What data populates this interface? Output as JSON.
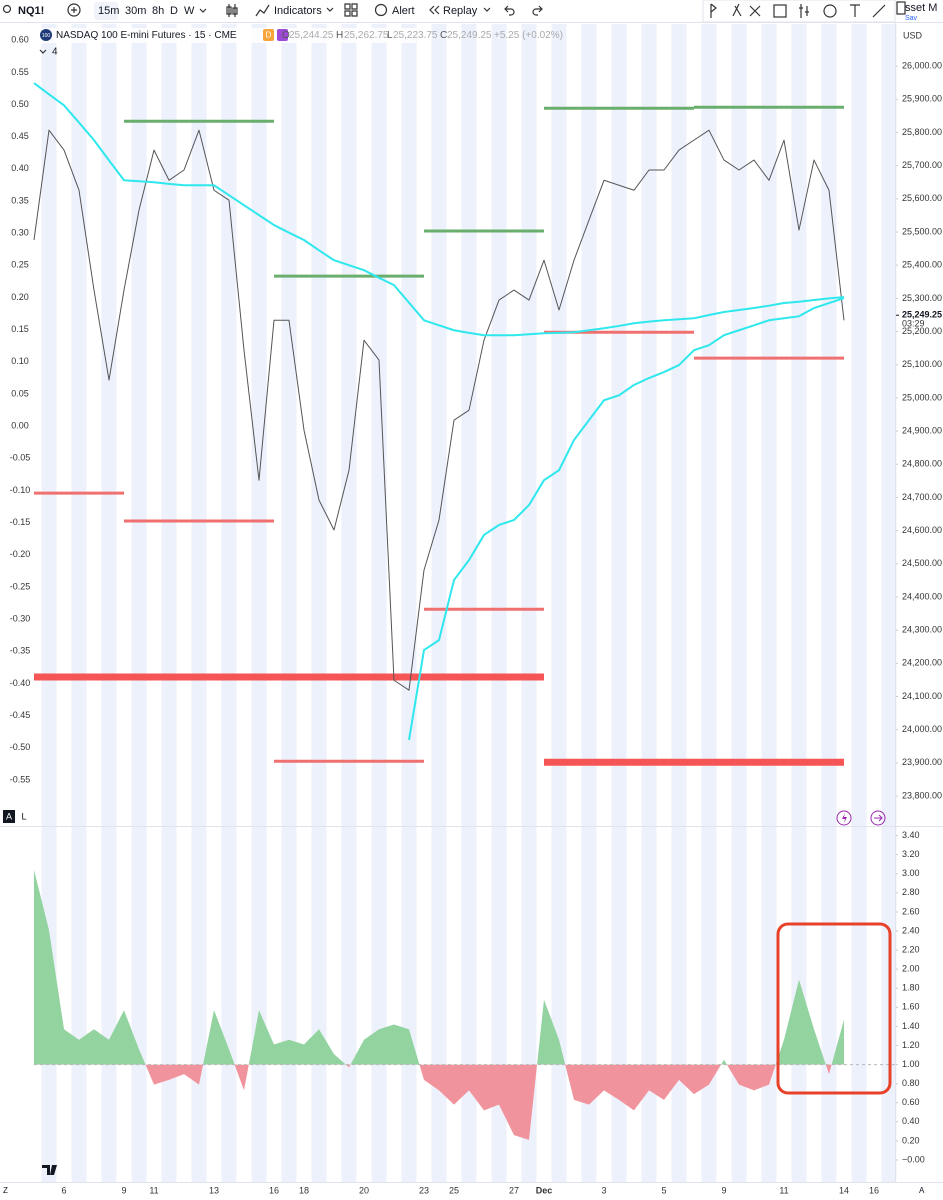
{
  "toolbar": {
    "symbol": "NQ1!",
    "intervals": [
      "15m",
      "30m",
      "8h",
      "D",
      "W"
    ],
    "indicators": "Indicators",
    "alert": "Alert",
    "replay": "Replay",
    "asset": "sset M",
    "save": "Sav"
  },
  "header": {
    "badge": "100",
    "name": "NASDAQ 100 E-mini Futures · 15 · CME",
    "flag": "D",
    "o_label": "O",
    "o": "25,244.25",
    "h_label": "H",
    "h": "25,262.75",
    "l_label": "L",
    "l": "25,223.75",
    "c_label": "C",
    "c": "25,249.25",
    "change": "+5.25 (+0.02%)",
    "indicator_count": "4"
  },
  "scale_buttons": {
    "auto": "A",
    "log": "L"
  },
  "footer": {
    "left": "Z",
    "right": "A"
  },
  "chart_data": [
    {
      "type": "line",
      "currency": "USD",
      "ylim": [
        23773,
        26115
      ],
      "yticks": [
        {
          "value": 23800,
          "label": "23,800.00"
        },
        {
          "value": 23900,
          "label": "23,900.00"
        },
        {
          "value": 24000,
          "label": "24,000.00"
        },
        {
          "value": 24100,
          "label": "24,100.00"
        },
        {
          "value": 24200,
          "label": "24,200.00"
        },
        {
          "value": 24300,
          "label": "24,300.00"
        },
        {
          "value": 24400,
          "label": "24,400.00"
        },
        {
          "value": 24500,
          "label": "24,500.00"
        },
        {
          "value": 24600,
          "label": "24,600.00"
        },
        {
          "value": 24700,
          "label": "24,700.00"
        },
        {
          "value": 24800,
          "label": "24,800.00"
        },
        {
          "value": 24900,
          "label": "24,900.00"
        },
        {
          "value": 25000,
          "label": "25,000.00"
        },
        {
          "value": 25100,
          "label": "25,100.00"
        },
        {
          "value": 25200,
          "label": "25,200.00"
        },
        {
          "value": 25300,
          "label": "25,300.00"
        },
        {
          "value": 25400,
          "label": "25,400.00"
        },
        {
          "value": 25500,
          "label": "25,500.00"
        },
        {
          "value": 25600,
          "label": "25,600.00"
        },
        {
          "value": 25700,
          "label": "25,700.00"
        },
        {
          "value": 25800,
          "label": "25,800.00"
        },
        {
          "value": 25900,
          "label": "25,900.00"
        },
        {
          "value": 26000,
          "label": "26,000.00"
        }
      ],
      "y2lim": [
        -0.589,
        0.619
      ],
      "y2ticks": [
        {
          "value": -0.55,
          "label": "-0.55"
        },
        {
          "value": -0.5,
          "label": "-0.50"
        },
        {
          "value": -0.45,
          "label": "-0.45"
        },
        {
          "value": -0.4,
          "label": "-0.40"
        },
        {
          "value": -0.35,
          "label": "-0.35"
        },
        {
          "value": -0.3,
          "label": "-0.30"
        },
        {
          "value": -0.25,
          "label": "-0.25"
        },
        {
          "value": -0.2,
          "label": "-0.20"
        },
        {
          "value": -0.15,
          "label": "-0.15"
        },
        {
          "value": -0.1,
          "label": "-0.10"
        },
        {
          "value": -0.05,
          "label": "-0.05"
        },
        {
          "value": 0,
          "label": "0.00"
        },
        {
          "value": 0.05,
          "label": "0.05"
        },
        {
          "value": 0.1,
          "label": "0.10"
        },
        {
          "value": 0.15,
          "label": "0.15"
        },
        {
          "value": 0.2,
          "label": "0.20"
        },
        {
          "value": 0.25,
          "label": "0.25"
        },
        {
          "value": 0.3,
          "label": "0.30"
        },
        {
          "value": 0.35,
          "label": "0.35"
        },
        {
          "value": 0.4,
          "label": "0.40"
        },
        {
          "value": 0.45,
          "label": "0.45"
        },
        {
          "value": 0.5,
          "label": "0.50"
        },
        {
          "value": 0.55,
          "label": "0.55"
        },
        {
          "value": 0.6,
          "label": "0.60"
        }
      ],
      "series": [
        {
          "color": "#555555",
          "width": 1,
          "values": [
            25476,
            25807,
            25747,
            25626,
            25325,
            25054,
            25325,
            25566,
            25747,
            25656,
            25687,
            25807,
            25626,
            25596,
            25144,
            24752,
            25234,
            25234,
            24903,
            24692,
            24602,
            24782,
            25174,
            25114,
            24149,
            24119,
            24481,
            24632,
            24933,
            24963,
            25174,
            25295,
            25325,
            25295,
            25415,
            25265,
            25415,
            25536,
            25656,
            25641,
            25626,
            25687,
            25687,
            25747,
            25777,
            25807,
            25717,
            25687,
            25717,
            25656,
            25777,
            25506,
            25717,
            25626,
            25234,
            null,
            null,
            null
          ]
        },
        {
          "color": "#2ee8ee",
          "width": 2,
          "values": [
            25949,
            25915,
            25882,
            25830,
            25777,
            25716,
            25656,
            25653,
            25650,
            25645,
            25641,
            25641,
            25641,
            25611,
            25581,
            25551,
            25521,
            25498,
            25476,
            25445,
            25415,
            25400,
            25385,
            25362,
            25340,
            25287,
            25234,
            25219,
            25204,
            25196,
            25189,
            25189,
            25189,
            25192,
            25195,
            25196,
            25198,
            25204,
            25210,
            25217,
            25225,
            25230,
            25234,
            25237,
            25240,
            25250,
            25259,
            25265,
            25271,
            25278,
            25286,
            25290,
            25295,
            25300,
            25304,
            null,
            null,
            null
          ]
        },
        {
          "color": "#2ee8ee",
          "width": 2,
          "values": [
            null,
            null,
            null,
            null,
            null,
            null,
            null,
            null,
            null,
            null,
            null,
            null,
            null,
            null,
            null,
            null,
            null,
            null,
            null,
            null,
            null,
            null,
            null,
            null,
            null,
            23969,
            24240,
            24270,
            24451,
            24511,
            24587,
            24617,
            24632,
            24677,
            24752,
            24782,
            24873,
            24933,
            24993,
            25008,
            25039,
            25060,
            25078,
            25099,
            25144,
            25159,
            25189,
            25204,
            25219,
            25234,
            25240,
            25246,
            25271,
            25286,
            25301,
            null,
            null,
            null
          ]
        }
      ],
      "levels": [
        {
          "x": [
            6,
            16
          ],
          "value": 25834,
          "color": "#6aae6e",
          "width": 3
        },
        {
          "x": [
            16,
            26
          ],
          "value": 25367,
          "color": "#6aae6e",
          "width": 3
        },
        {
          "x": [
            26,
            34
          ],
          "value": 25503,
          "color": "#6aae6e",
          "width": 3
        },
        {
          "x": [
            34,
            44
          ],
          "value": 25873,
          "color": "#6aae6e",
          "width": 3
        },
        {
          "x": [
            44,
            54
          ],
          "value": 25876,
          "color": "#6aae6e",
          "width": 3
        },
        {
          "x": [
            0,
            6
          ],
          "value": 24713,
          "color": "#f07070",
          "width": 3
        },
        {
          "x": [
            6,
            16
          ],
          "value": 24629,
          "color": "#f07070",
          "width": 3
        },
        {
          "x": [
            26,
            34
          ],
          "value": 24363,
          "color": "#f07070",
          "width": 3
        },
        {
          "x": [
            34,
            44
          ],
          "value": 25198,
          "color": "#f07070",
          "width": 3
        },
        {
          "x": [
            44,
            54
          ],
          "value": 25120,
          "color": "#f07070",
          "width": 3
        },
        {
          "x": [
            16,
            26
          ],
          "value": 23905,
          "color": "#f07070",
          "width": 3
        },
        {
          "x": [
            0,
            34
          ],
          "value": 24159,
          "color": "#f55555",
          "width": 7
        },
        {
          "x": [
            34,
            54
          ],
          "value": 23902,
          "color": "#f55555",
          "width": 7
        }
      ],
      "last_price": {
        "value": 25249.25,
        "label": "25,249.25"
      },
      "countdown": "03:29"
    },
    {
      "type": "area",
      "categories": [
        null,
        null,
        "6",
        null,
        null,
        null,
        "9",
        null,
        "11",
        null,
        null,
        null,
        "13",
        null,
        null,
        null,
        "16",
        null,
        "18",
        null,
        null,
        null,
        "20",
        null,
        null,
        null,
        "23",
        null,
        "25",
        null,
        null,
        null,
        "27",
        null,
        "Dec",
        null,
        null,
        null,
        "3",
        null,
        null,
        null,
        "5",
        null,
        null,
        null,
        "9",
        null,
        null,
        null,
        "11",
        null,
        null,
        null,
        "14",
        null,
        "16",
        null
      ],
      "values": [
        3.04,
        2.41,
        1.37,
        1.26,
        1.37,
        1.26,
        1.57,
        1.16,
        0.79,
        0.84,
        0.9,
        0.79,
        1.57,
        1.16,
        0.73,
        1.57,
        1.21,
        1.26,
        1.21,
        1.37,
        1.11,
        0.97,
        1.26,
        1.37,
        1.42,
        1.37,
        0.84,
        0.73,
        0.58,
        0.73,
        0.52,
        0.58,
        0.26,
        0.21,
        1.68,
        1.26,
        0.63,
        0.58,
        0.73,
        0.63,
        0.52,
        0.73,
        0.63,
        0.84,
        0.69,
        0.79,
        1.05,
        0.79,
        0.73,
        0.79,
        1.26,
        1.89,
        1.37,
        0.9,
        1.47,
        null,
        null,
        null
      ],
      "baseline": 1,
      "colors": {
        "above": "#93d3a0",
        "below": "#f1939c"
      },
      "ylim": [
        -0.21,
        3.48
      ],
      "yticks": [
        {
          "value": 0,
          "label": "−0.00"
        },
        {
          "value": 0.2,
          "label": "0.20"
        },
        {
          "value": 0.4,
          "label": "0.40"
        },
        {
          "value": 0.6,
          "label": "0.60"
        },
        {
          "value": 0.8,
          "label": "0.80"
        },
        {
          "value": 1,
          "label": "1.00"
        },
        {
          "value": 1.2,
          "label": "1.20"
        },
        {
          "value": 1.4,
          "label": "1.40"
        },
        {
          "value": 1.6,
          "label": "1.60"
        },
        {
          "value": 1.8,
          "label": "1.80"
        },
        {
          "value": 2,
          "label": "2.00"
        },
        {
          "value": 2.2,
          "label": "2.20"
        },
        {
          "value": 2.4,
          "label": "2.40"
        },
        {
          "value": 2.6,
          "label": "2.60"
        },
        {
          "value": 2.8,
          "label": "2.80"
        },
        {
          "value": 3,
          "label": "3.00"
        },
        {
          "value": 3.2,
          "label": "3.20"
        },
        {
          "value": 3.4,
          "label": "3.40"
        }
      ]
    }
  ]
}
